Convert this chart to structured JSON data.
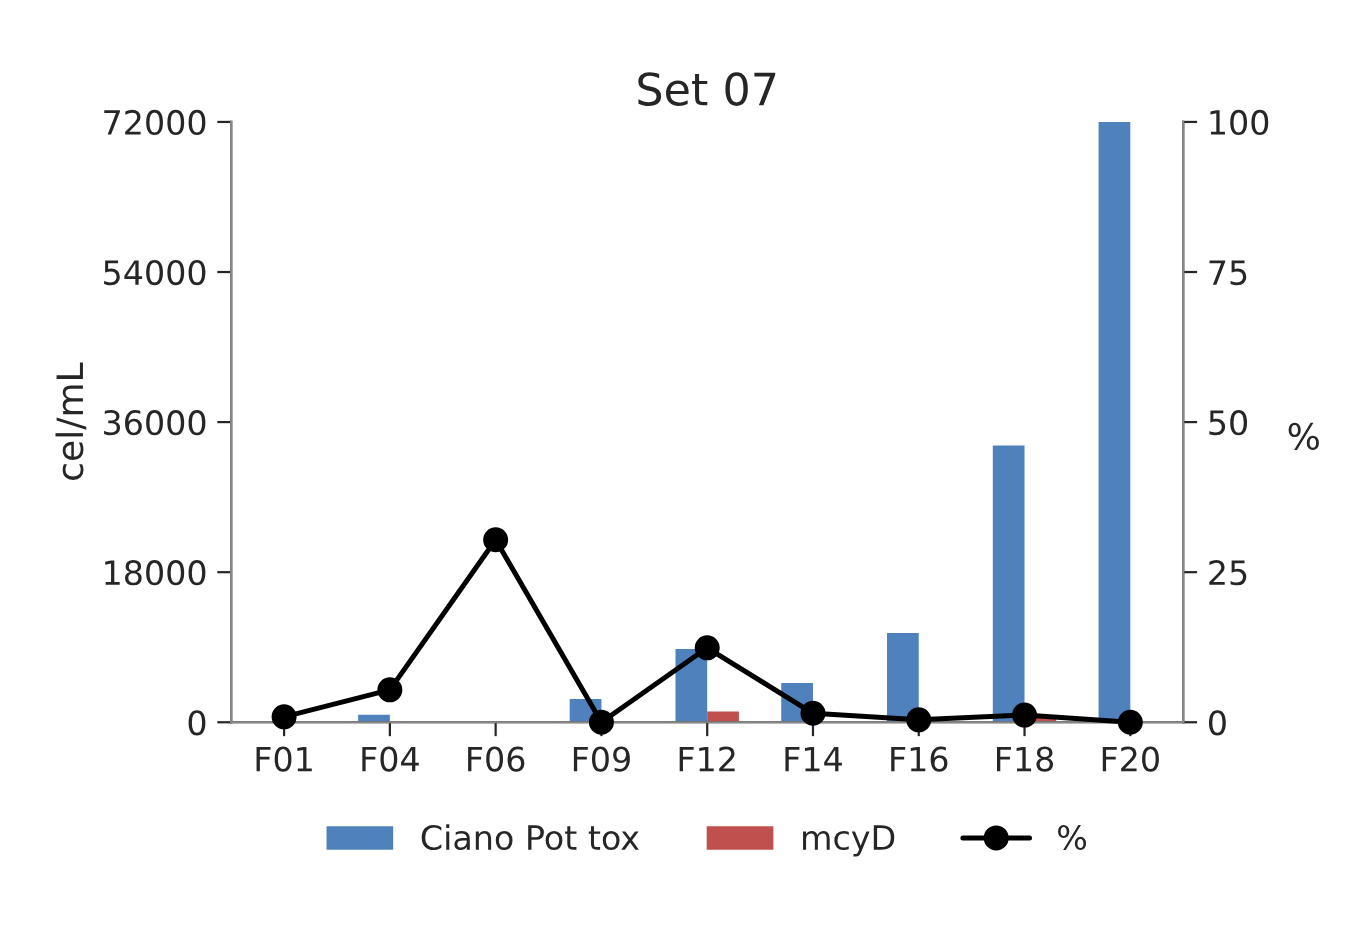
{
  "chart_data": {
    "type": "bar",
    "title": "Set 07",
    "ylabel": "cel/mL",
    "y2label": "%",
    "categories": [
      "F01",
      "F04",
      "F06",
      "F09",
      "F12",
      "F14",
      "F16",
      "F18",
      "F20"
    ],
    "series": [
      {
        "name": "Ciano Pot tox",
        "color": "#4f81bd",
        "values": [
          0,
          900,
          0,
          2800,
          8800,
          4700,
          10700,
          33200,
          72000
        ]
      },
      {
        "name": "mcyD",
        "color": "#c0504d",
        "values": [
          0,
          0,
          0,
          0,
          1300,
          0,
          0,
          500,
          0
        ]
      },
      {
        "name": "%",
        "type": "line",
        "axis": "y2",
        "color": "#000000",
        "values": [
          0.9,
          5.4,
          30.4,
          0,
          12.4,
          1.5,
          0.4,
          1.2,
          0
        ]
      }
    ],
    "ylim": [
      0,
      72000
    ],
    "yticks": [
      0,
      18000,
      36000,
      54000,
      72000
    ],
    "y2lim": [
      0,
      100
    ],
    "y2ticks": [
      0,
      25,
      50,
      75,
      100
    ],
    "legend": "bottom",
    "marker": "circle",
    "line_style": "solid",
    "grid": false
  }
}
